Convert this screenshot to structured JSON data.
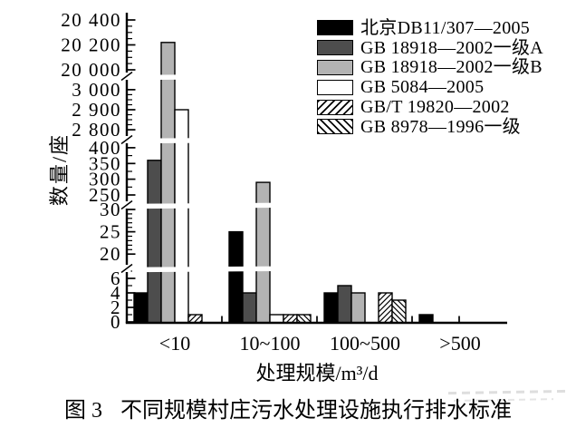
{
  "figure": {
    "caption_label": "图 3",
    "caption_text": "不同规模村庄污水处理设施执行排水标准"
  },
  "chart_data": {
    "type": "bar",
    "title": "不同规模村庄污水处理设施执行排水标准",
    "xlabel": "处理规模/m³/d",
    "ylabel": "数量/座",
    "categories": [
      "<10",
      "10~100",
      "100~500",
      ">500"
    ],
    "series": [
      {
        "name": "北京DB11/307—2005",
        "style": "black",
        "color": "#000000",
        "values": [
          4,
          25,
          4,
          1
        ]
      },
      {
        "name": "GB 18918—2002一级A",
        "style": "darkgray",
        "color": "#4d4d4d",
        "values": [
          360,
          4,
          5,
          0
        ]
      },
      {
        "name": "GB 18918—2002一级B",
        "style": "lightgray",
        "color": "#b3b3b3",
        "values": [
          20220,
          290,
          4,
          0
        ]
      },
      {
        "name": "GB 5084—2005",
        "style": "white",
        "color": "#ffffff",
        "values": [
          2900,
          1,
          0,
          0
        ]
      },
      {
        "name": "GB/T 19820—2002",
        "style": "hatch-forward",
        "color": "#ffffff",
        "values": [
          1,
          1,
          4,
          0
        ]
      },
      {
        "name": "GB 8978—1996一级",
        "style": "hatch-back",
        "color": "#ffffff",
        "values": [
          0,
          1,
          3,
          0
        ]
      }
    ],
    "y_axis": {
      "broken": true,
      "segments": [
        {
          "range": [
            0,
            7
          ],
          "major": [
            0,
            2,
            4,
            6
          ],
          "labels": [
            "0",
            "2",
            "4",
            "6"
          ],
          "minor": [
            1,
            3,
            5,
            7
          ]
        },
        {
          "range": [
            17.4,
            30.4
          ],
          "major": [
            20,
            25,
            30
          ],
          "labels": [
            "20",
            "25",
            "30"
          ],
          "minor": [
            21,
            22,
            23,
            24,
            26,
            27,
            28,
            29
          ]
        },
        {
          "range": [
            227,
            417
          ],
          "major": [
            250,
            300,
            350,
            400
          ],
          "labels": [
            "250",
            "300",
            "350",
            "400"
          ],
          "minor": [
            275,
            325,
            375
          ]
        },
        {
          "range": [
            2764,
            3054
          ],
          "major": [
            2800,
            2900,
            3000
          ],
          "labels": [
            "2 800",
            "2 900",
            "3 000"
          ],
          "minor": [
            2825,
            2850,
            2875,
            2925,
            2950,
            2975
          ]
        },
        {
          "range": [
            19971,
            20451
          ],
          "major": [
            20000,
            20200,
            20400
          ],
          "labels": [
            "20 000",
            "20 200",
            "20 400"
          ],
          "minor": [
            20050,
            20100,
            20150,
            20250,
            20300,
            20350
          ]
        }
      ]
    },
    "legend_position": "top-right",
    "grid": false
  }
}
